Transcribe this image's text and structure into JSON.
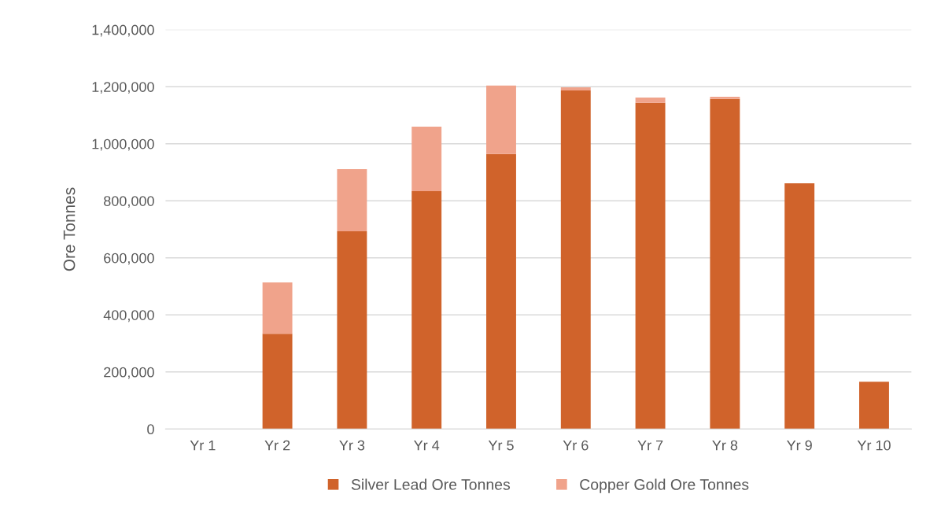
{
  "chart_data": {
    "type": "bar",
    "stacked": true,
    "ylabel": "Ore Tonnes",
    "categories": [
      "Yr 1",
      "Yr 2",
      "Yr 3",
      "Yr 4",
      "Yr 5",
      "Yr 6",
      "Yr 7",
      "Yr 8",
      "Yr 9",
      "Yr 10"
    ],
    "series": [
      {
        "name": "Silver Lead Ore Tonnes",
        "color": "#d0632b",
        "values": [
          0,
          334000,
          693000,
          834000,
          964000,
          1187000,
          1143000,
          1157000,
          861000,
          166000
        ]
      },
      {
        "name": "Copper Gold Ore Tonnes",
        "color": "#f0a38b",
        "values": [
          0,
          180000,
          218000,
          226000,
          240000,
          11000,
          19000,
          8000,
          0,
          0
        ]
      }
    ],
    "ylim": [
      0,
      1400000
    ],
    "yticks": [
      {
        "value": 0,
        "label": "0"
      },
      {
        "value": 200000,
        "label": "200,000"
      },
      {
        "value": 400000,
        "label": "400,000"
      },
      {
        "value": 600000,
        "label": "600,000"
      },
      {
        "value": 800000,
        "label": "800,000"
      },
      {
        "value": 1000000,
        "label": "1,000,000"
      },
      {
        "value": 1200000,
        "label": "1,200,000"
      },
      {
        "value": 1400000,
        "label": "1,400,000"
      }
    ],
    "grid": "y",
    "legend": "bottom"
  }
}
